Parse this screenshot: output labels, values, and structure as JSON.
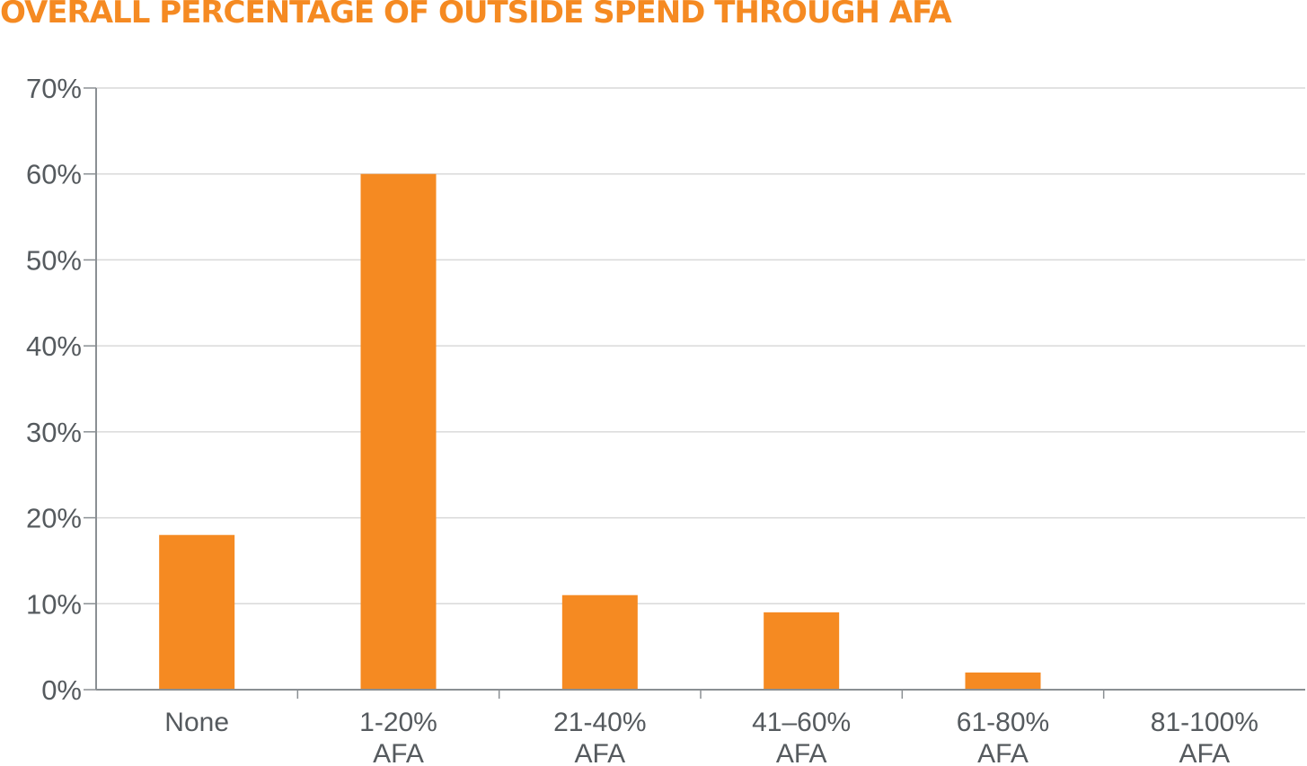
{
  "chart_data": {
    "type": "bar",
    "title": "OVERALL PERCENTAGE OF OUTSIDE SPEND THROUGH AFA",
    "categories": [
      [
        "None"
      ],
      [
        "1-20%",
        "AFA"
      ],
      [
        "21-40%",
        "AFA"
      ],
      [
        "41–60%",
        "AFA"
      ],
      [
        "61-80%",
        "AFA"
      ],
      [
        "81-100%",
        "AFA"
      ]
    ],
    "values": [
      18,
      60,
      11,
      9,
      2,
      0
    ],
    "ylim": [
      0,
      70
    ],
    "yticks": [
      0,
      10,
      20,
      30,
      40,
      50,
      60,
      70
    ],
    "ytick_labels": [
      "0%",
      "10%",
      "20%",
      "30%",
      "40%",
      "50%",
      "60%",
      "70%"
    ],
    "grid": true,
    "bar_color": "#f58a22"
  }
}
